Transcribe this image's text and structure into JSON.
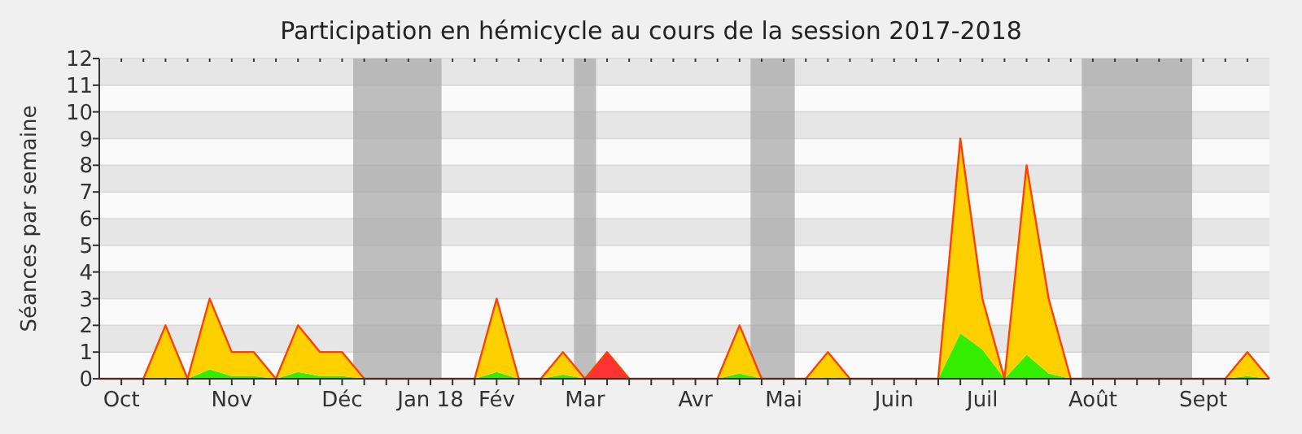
{
  "chart_data": {
    "type": "area",
    "title": "Participation en hémicycle au cours de la session 2017-2018",
    "ylabel": "Séances par semaine",
    "stacked": true,
    "grid": "y",
    "x": [
      "2017-09-28",
      "2017-10-05",
      "2017-10-12",
      "2017-10-19",
      "2017-10-26",
      "2017-11-02",
      "2017-11-09",
      "2017-11-16",
      "2017-11-23",
      "2017-11-30",
      "2017-12-07",
      "2017-12-14",
      "2017-12-21",
      "2017-12-28",
      "2018-01-04",
      "2018-01-11",
      "2018-01-18",
      "2018-01-25",
      "2018-02-01",
      "2018-02-08",
      "2018-02-15",
      "2018-02-22",
      "2018-03-01",
      "2018-03-08",
      "2018-03-15",
      "2018-03-22",
      "2018-03-29",
      "2018-04-05",
      "2018-04-12",
      "2018-04-19",
      "2018-04-26",
      "2018-05-03",
      "2018-05-10",
      "2018-05-17",
      "2018-05-24",
      "2018-05-31",
      "2018-06-07",
      "2018-06-14",
      "2018-06-21",
      "2018-06-28",
      "2018-07-05",
      "2018-07-12",
      "2018-07-19",
      "2018-07-26",
      "2018-08-02",
      "2018-08-09",
      "2018-08-16",
      "2018-08-23",
      "2018-08-30",
      "2018-09-06",
      "2018-09-13",
      "2018-09-20",
      "2018-09-27",
      "2018-10-04"
    ],
    "series": [
      {
        "color": "#33ee00",
        "values": [
          0,
          0,
          0,
          0.05,
          0,
          0.35,
          0.1,
          0.1,
          0,
          0.25,
          0.1,
          0.1,
          0,
          0,
          0,
          0,
          0,
          0,
          0.25,
          0,
          0,
          0.15,
          0,
          0,
          0,
          0,
          0,
          0,
          0,
          0.2,
          0,
          0,
          0,
          0.05,
          0,
          0,
          0,
          0,
          0,
          1.7,
          1.1,
          0,
          0.9,
          0.2,
          0,
          0,
          0,
          0,
          0,
          0,
          0,
          0,
          0.1,
          0
        ]
      },
      {
        "color": "#ffd000",
        "values": [
          0,
          0,
          0,
          1.95,
          0,
          2.65,
          0.9,
          0.9,
          0,
          1.75,
          0.9,
          0.9,
          0,
          0,
          0,
          0,
          0,
          0,
          2.75,
          0,
          0,
          0.85,
          0,
          0,
          0,
          0,
          0,
          0,
          0,
          1.8,
          0,
          0,
          0,
          0.95,
          0,
          0,
          0,
          0,
          0,
          7.3,
          1.9,
          0,
          7.1,
          2.8,
          0,
          0,
          0,
          0,
          0,
          0,
          0,
          0,
          0.9,
          0
        ]
      },
      {
        "color": "#ff3333",
        "values": [
          null,
          null,
          null,
          null,
          null,
          null,
          null,
          null,
          null,
          null,
          null,
          null,
          null,
          null,
          null,
          null,
          null,
          null,
          null,
          null,
          null,
          null,
          0,
          1,
          0,
          null,
          null,
          null,
          null,
          null,
          null,
          null,
          null,
          null,
          null,
          null,
          null,
          null,
          null,
          null,
          null,
          null,
          null,
          null,
          null,
          null,
          null,
          null,
          null,
          null,
          null,
          null,
          null,
          null
        ]
      }
    ],
    "xlim": [
      "2017-09-28",
      "2018-10-04"
    ],
    "xticks": [
      {
        "value": "2017-10-05",
        "label": "Oct"
      },
      {
        "value": "2017-10-12",
        "label": null
      },
      {
        "value": "2017-10-19",
        "label": null
      },
      {
        "value": "2017-10-26",
        "label": null
      },
      {
        "value": "2017-11-02",
        "label": null
      },
      {
        "value": "2017-11-09",
        "label": "Nov"
      },
      {
        "value": "2017-11-16",
        "label": null
      },
      {
        "value": "2017-11-23",
        "label": null
      },
      {
        "value": "2017-11-30",
        "label": null
      },
      {
        "value": "2017-12-07",
        "label": null
      },
      {
        "value": "2017-12-14",
        "label": "Déc"
      },
      {
        "value": "2017-12-21",
        "label": null
      },
      {
        "value": "2017-12-28",
        "label": null
      },
      {
        "value": "2018-01-04",
        "label": null
      },
      {
        "value": "2018-01-11",
        "label": "Jan 18"
      },
      {
        "value": "2018-01-18",
        "label": null
      },
      {
        "value": "2018-01-25",
        "label": null
      },
      {
        "value": "2018-02-01",
        "label": "Fév"
      },
      {
        "value": "2018-02-08",
        "label": null
      },
      {
        "value": "2018-02-15",
        "label": null
      },
      {
        "value": "2018-02-22",
        "label": null
      },
      {
        "value": "2018-03-01",
        "label": "Mar"
      },
      {
        "value": "2018-03-08",
        "label": null
      },
      {
        "value": "2018-03-15",
        "label": null
      },
      {
        "value": "2018-03-22",
        "label": null
      },
      {
        "value": "2018-03-29",
        "label": null
      },
      {
        "value": "2018-04-05",
        "label": "Avr"
      },
      {
        "value": "2018-04-12",
        "label": null
      },
      {
        "value": "2018-04-19",
        "label": null
      },
      {
        "value": "2018-04-26",
        "label": null
      },
      {
        "value": "2018-05-03",
        "label": "Mai"
      },
      {
        "value": "2018-05-10",
        "label": null
      },
      {
        "value": "2018-05-17",
        "label": null
      },
      {
        "value": "2018-05-24",
        "label": null
      },
      {
        "value": "2018-05-31",
        "label": null
      },
      {
        "value": "2018-06-07",
        "label": "Juin"
      },
      {
        "value": "2018-06-14",
        "label": null
      },
      {
        "value": "2018-06-21",
        "label": null
      },
      {
        "value": "2018-06-28",
        "label": null
      },
      {
        "value": "2018-07-05",
        "label": "Juil"
      },
      {
        "value": "2018-07-12",
        "label": null
      },
      {
        "value": "2018-07-19",
        "label": null
      },
      {
        "value": "2018-07-26",
        "label": null
      },
      {
        "value": "2018-08-02",
        "label": null
      },
      {
        "value": "2018-08-09",
        "label": "Août"
      },
      {
        "value": "2018-08-16",
        "label": null
      },
      {
        "value": "2018-08-23",
        "label": null
      },
      {
        "value": "2018-08-30",
        "label": null
      },
      {
        "value": "2018-09-06",
        "label": null
      },
      {
        "value": "2018-09-13",
        "label": "Sept"
      },
      {
        "value": "2018-09-20",
        "label": null
      },
      {
        "value": "2018-09-27",
        "label": null
      }
    ],
    "ylim": [
      0,
      12
    ],
    "yticks": [
      0,
      1,
      2,
      3,
      4,
      5,
      6,
      7,
      8,
      9,
      10,
      11,
      12
    ],
    "bands": [
      {
        "axis": "x",
        "from": "2017-12-17T12:00",
        "to": "2018-01-14T12:00",
        "color": "#aaaaaa"
      },
      {
        "axis": "x",
        "from": "2018-02-25T12:00",
        "to": "2018-03-04T12:00",
        "color": "#aaaaaa"
      },
      {
        "axis": "x",
        "from": "2018-04-22T12:00",
        "to": "2018-05-06T12:00",
        "color": "#aaaaaa"
      },
      {
        "axis": "x",
        "from": "2018-08-05T12:00",
        "to": "2018-09-09T12:00",
        "color": "#aaaaaa"
      }
    ]
  }
}
